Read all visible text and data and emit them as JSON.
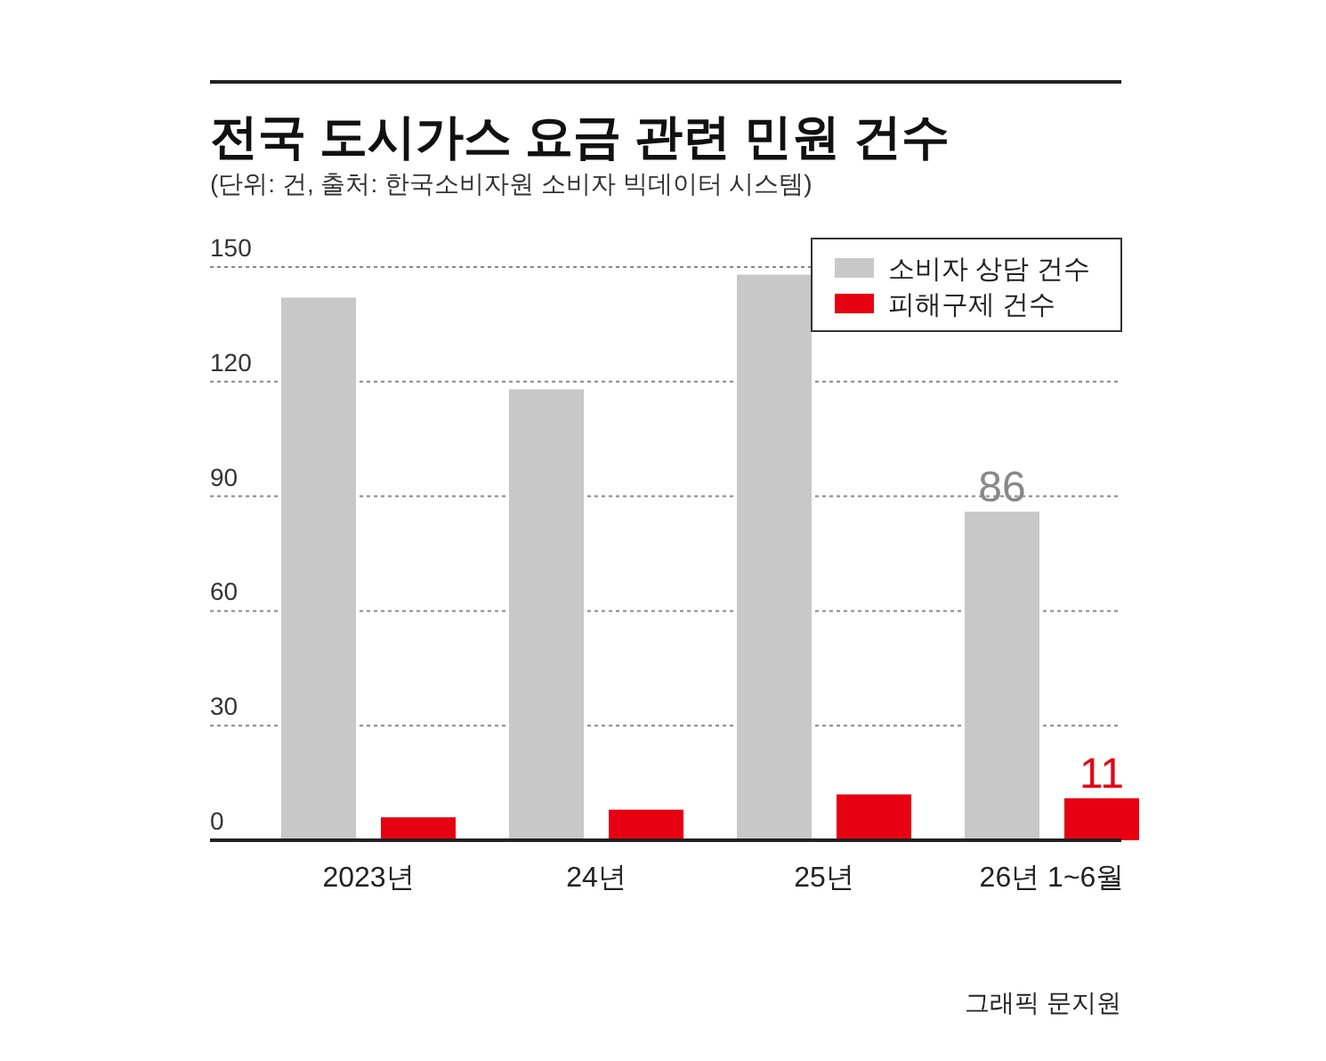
{
  "chart_data": {
    "type": "bar",
    "title": "전국 도시가스 요금 관련 민원 건수",
    "subtitle": "(단위: 건, 출처: 한국소비자원 소비자 빅데이터 시스템)",
    "categories": [
      "2023년",
      "24년",
      "25년",
      "26년 1~6월"
    ],
    "series": [
      {
        "name": "소비자 상담 건수",
        "color": "#c8c8c8",
        "values": [
          142,
          118,
          148,
          86
        ],
        "value_labels": [
          null,
          null,
          null,
          "86"
        ]
      },
      {
        "name": "피해구제 건수",
        "color": "#e60012",
        "values": [
          6,
          8,
          12,
          11
        ],
        "value_labels": [
          null,
          null,
          null,
          "11"
        ]
      }
    ],
    "ylim": [
      0,
      150
    ],
    "yticks": [
      0,
      30,
      60,
      90,
      120,
      150
    ],
    "grid": "y",
    "legend": "top right",
    "annotations": [
      "그래픽 문지원"
    ]
  }
}
